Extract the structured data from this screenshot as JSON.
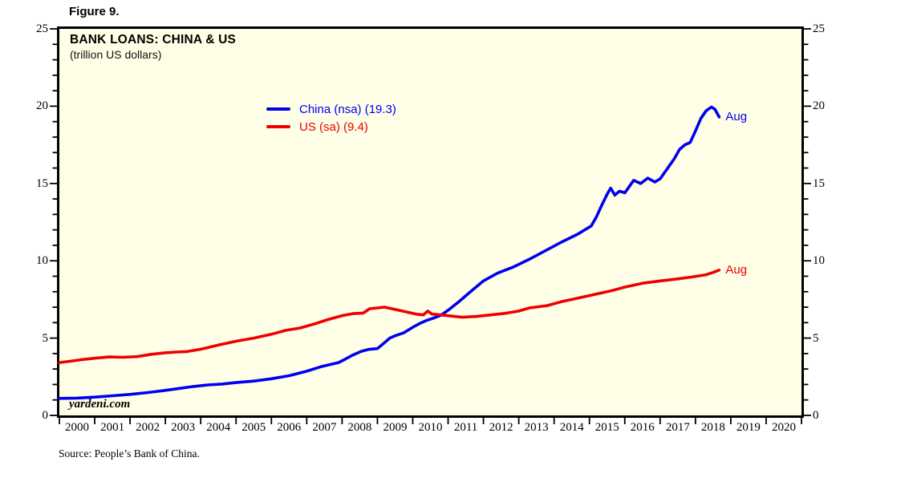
{
  "figure_label": "Figure 9.",
  "chart": {
    "title": "BANK LOANS: CHINA & US",
    "subtitle": "(trillion US dollars)",
    "watermark": "yardeni.com",
    "source_note": "Source: People’s Bank of China.",
    "colors": {
      "china": "#0000ee",
      "us": "#ee0000",
      "plot_background": "#fffee6",
      "border": "#000000"
    }
  },
  "chart_data": {
    "type": "line",
    "title": "BANK LOANS: CHINA & US",
    "subtitle": "(trillion US dollars)",
    "ylabel": "trillion US dollars",
    "ylim": [
      0,
      25
    ],
    "xlim": [
      2000,
      2021
    ],
    "y_major_ticks": [
      0,
      5,
      10,
      15,
      20,
      25
    ],
    "y_minor_step": 1,
    "grid": "off",
    "legend_position": "upper-left-inside",
    "x_year_labels": [
      "2000",
      "2001",
      "2002",
      "2003",
      "2004",
      "2005",
      "2006",
      "2007",
      "2008",
      "2009",
      "2010",
      "2011",
      "2012",
      "2013",
      "2014",
      "2015",
      "2016",
      "2017",
      "2018",
      "2019",
      "2020"
    ],
    "legend": [
      {
        "label": "China (nsa) (19.3)",
        "series": "china",
        "color": "#0000ee"
      },
      {
        "label": "US (sa) (9.4)",
        "series": "us",
        "color": "#ee0000"
      }
    ],
    "annotations": [
      {
        "text": "Aug",
        "series": "china",
        "color": "#0000ee"
      },
      {
        "text": "Aug",
        "series": "us",
        "color": "#ee0000"
      }
    ],
    "series": [
      {
        "id": "china",
        "name": "China (nsa)",
        "last_value": 19.3,
        "color": "#0000ee",
        "points": [
          [
            2000.0,
            1.1
          ],
          [
            2000.5,
            1.12
          ],
          [
            2001.0,
            1.18
          ],
          [
            2001.5,
            1.27
          ],
          [
            2002.0,
            1.36
          ],
          [
            2002.5,
            1.48
          ],
          [
            2003.0,
            1.62
          ],
          [
            2003.4,
            1.75
          ],
          [
            2003.8,
            1.87
          ],
          [
            2004.2,
            1.97
          ],
          [
            2004.6,
            2.03
          ],
          [
            2005.0,
            2.12
          ],
          [
            2005.5,
            2.22
          ],
          [
            2006.0,
            2.37
          ],
          [
            2006.5,
            2.57
          ],
          [
            2007.0,
            2.86
          ],
          [
            2007.4,
            3.15
          ],
          [
            2007.9,
            3.42
          ],
          [
            2008.1,
            3.65
          ],
          [
            2008.3,
            3.9
          ],
          [
            2008.55,
            4.15
          ],
          [
            2008.75,
            4.27
          ],
          [
            2009.0,
            4.32
          ],
          [
            2009.2,
            4.7
          ],
          [
            2009.35,
            5.0
          ],
          [
            2009.5,
            5.15
          ],
          [
            2009.75,
            5.35
          ],
          [
            2010.0,
            5.7
          ],
          [
            2010.2,
            5.95
          ],
          [
            2010.4,
            6.15
          ],
          [
            2010.6,
            6.3
          ],
          [
            2010.8,
            6.48
          ],
          [
            2011.0,
            6.8
          ],
          [
            2011.33,
            7.4
          ],
          [
            2011.66,
            8.05
          ],
          [
            2012.0,
            8.7
          ],
          [
            2012.4,
            9.2
          ],
          [
            2012.85,
            9.6
          ],
          [
            2013.3,
            10.1
          ],
          [
            2013.75,
            10.65
          ],
          [
            2014.2,
            11.2
          ],
          [
            2014.65,
            11.7
          ],
          [
            2015.05,
            12.25
          ],
          [
            2015.2,
            12.85
          ],
          [
            2015.35,
            13.6
          ],
          [
            2015.5,
            14.3
          ],
          [
            2015.6,
            14.7
          ],
          [
            2015.72,
            14.25
          ],
          [
            2015.85,
            14.5
          ],
          [
            2016.0,
            14.4
          ],
          [
            2016.25,
            15.2
          ],
          [
            2016.45,
            15.0
          ],
          [
            2016.65,
            15.35
          ],
          [
            2016.85,
            15.1
          ],
          [
            2017.0,
            15.3
          ],
          [
            2017.17,
            15.85
          ],
          [
            2017.4,
            16.6
          ],
          [
            2017.55,
            17.2
          ],
          [
            2017.7,
            17.5
          ],
          [
            2017.85,
            17.65
          ],
          [
            2018.0,
            18.4
          ],
          [
            2018.15,
            19.2
          ],
          [
            2018.3,
            19.7
          ],
          [
            2018.45,
            19.95
          ],
          [
            2018.55,
            19.8
          ],
          [
            2018.67,
            19.3
          ]
        ]
      },
      {
        "id": "us",
        "name": "US (sa)",
        "last_value": 9.4,
        "color": "#ee0000",
        "points": [
          [
            2000.0,
            3.42
          ],
          [
            2000.3,
            3.5
          ],
          [
            2000.6,
            3.6
          ],
          [
            2001.0,
            3.7
          ],
          [
            2001.4,
            3.78
          ],
          [
            2001.8,
            3.76
          ],
          [
            2002.2,
            3.8
          ],
          [
            2002.6,
            3.95
          ],
          [
            2003.0,
            4.05
          ],
          [
            2003.3,
            4.1
          ],
          [
            2003.6,
            4.13
          ],
          [
            2004.0,
            4.28
          ],
          [
            2004.5,
            4.55
          ],
          [
            2005.0,
            4.8
          ],
          [
            2005.5,
            5.0
          ],
          [
            2006.0,
            5.25
          ],
          [
            2006.4,
            5.5
          ],
          [
            2006.8,
            5.65
          ],
          [
            2007.2,
            5.9
          ],
          [
            2007.6,
            6.2
          ],
          [
            2008.0,
            6.45
          ],
          [
            2008.3,
            6.58
          ],
          [
            2008.6,
            6.62
          ],
          [
            2008.78,
            6.9
          ],
          [
            2009.0,
            6.95
          ],
          [
            2009.2,
            7.0
          ],
          [
            2009.5,
            6.85
          ],
          [
            2009.8,
            6.7
          ],
          [
            2010.1,
            6.55
          ],
          [
            2010.3,
            6.5
          ],
          [
            2010.42,
            6.75
          ],
          [
            2010.55,
            6.55
          ],
          [
            2010.8,
            6.5
          ],
          [
            2011.1,
            6.42
          ],
          [
            2011.4,
            6.35
          ],
          [
            2011.8,
            6.4
          ],
          [
            2012.2,
            6.5
          ],
          [
            2012.6,
            6.6
          ],
          [
            2013.0,
            6.75
          ],
          [
            2013.3,
            6.95
          ],
          [
            2013.8,
            7.1
          ],
          [
            2014.2,
            7.35
          ],
          [
            2014.7,
            7.6
          ],
          [
            2015.1,
            7.8
          ],
          [
            2015.6,
            8.05
          ],
          [
            2016.0,
            8.3
          ],
          [
            2016.5,
            8.55
          ],
          [
            2017.0,
            8.7
          ],
          [
            2017.4,
            8.8
          ],
          [
            2017.9,
            8.95
          ],
          [
            2018.3,
            9.1
          ],
          [
            2018.5,
            9.25
          ],
          [
            2018.67,
            9.4
          ]
        ]
      }
    ]
  }
}
